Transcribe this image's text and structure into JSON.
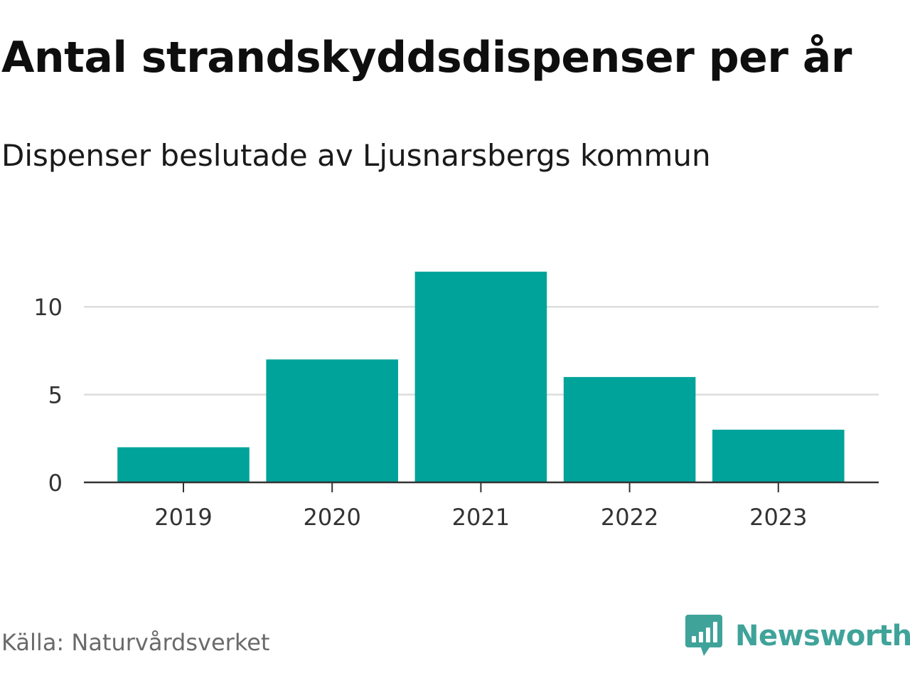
{
  "header": {
    "title": "Antal strandskyddsdispenser per år",
    "subtitle": "Dispenser beslutade av Ljusnarsbergs kommun"
  },
  "footer": {
    "source": "Källa: Naturvårdsverket",
    "brand": "Newsworthy",
    "brand_icon": "newsworthy-logo-icon"
  },
  "colors": {
    "bar": "#00a39a",
    "brand": "#3fa39a",
    "gridline": "#dddddd",
    "axis": "#333333"
  },
  "chart_data": {
    "type": "bar",
    "title": "Antal strandskyddsdispenser per år",
    "subtitle": "Dispenser beslutade av Ljusnarsbergs kommun",
    "categories": [
      "2019",
      "2020",
      "2021",
      "2022",
      "2023"
    ],
    "values": [
      2,
      7,
      12,
      6,
      3
    ],
    "yticks": [
      0,
      5,
      10
    ],
    "ylim": [
      0,
      14.1
    ],
    "xlabel": "",
    "ylabel": "",
    "grid": true,
    "legend": "none"
  }
}
